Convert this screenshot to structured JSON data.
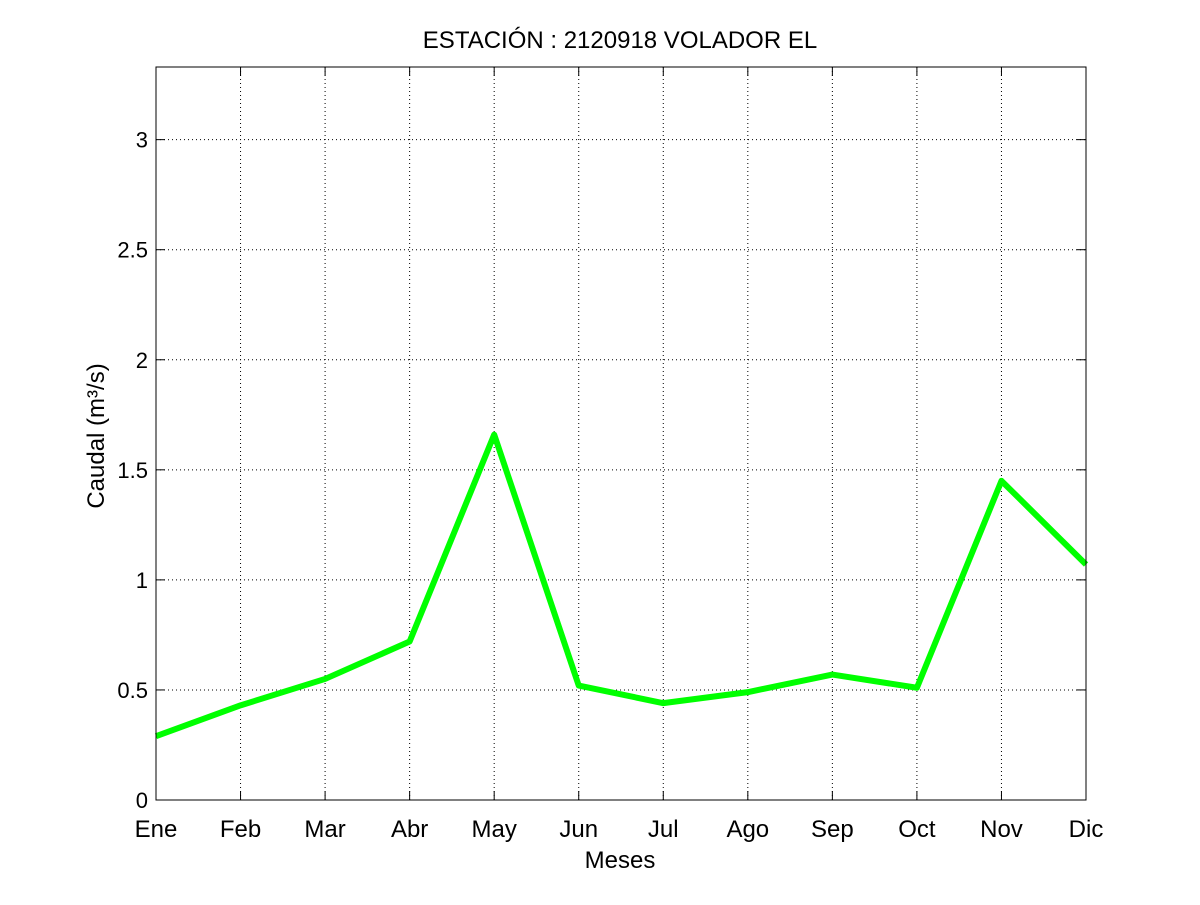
{
  "chart_data": {
    "type": "line",
    "title": "ESTACIÓN :  2120918  VOLADOR EL",
    "xlabel": "Meses",
    "ylabel": "Caudal (m³/s)",
    "categories": [
      "Ene",
      "Feb",
      "Mar",
      "Abr",
      "May",
      "Jun",
      "Jul",
      "Ago",
      "Sep",
      "Oct",
      "Nov",
      "Dic"
    ],
    "series": [
      {
        "values": [
          0.29,
          0.43,
          0.55,
          0.72,
          1.66,
          0.52,
          0.44,
          0.49,
          0.57,
          0.51,
          1.45,
          1.07
        ],
        "color": "#00ff00"
      }
    ],
    "ylim": [
      0,
      3.33
    ],
    "yticks": [
      0,
      0.5,
      1,
      1.5,
      2,
      2.5,
      3
    ],
    "ytick_labels": [
      "0",
      "0.5",
      "1",
      "1.5",
      "2",
      "2.5",
      "3"
    ],
    "grid": true,
    "grid_style": "dotted"
  }
}
